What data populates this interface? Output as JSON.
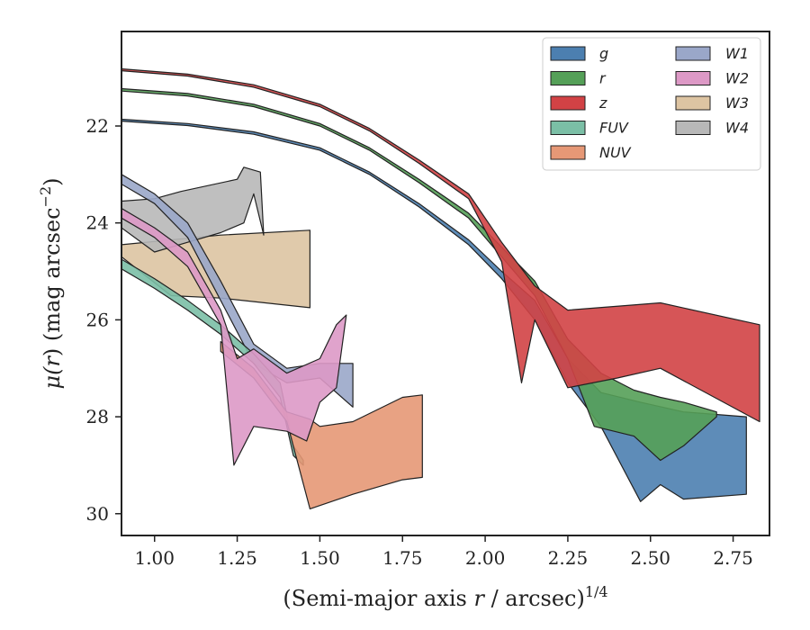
{
  "chart_data": {
    "type": "area",
    "xlabel": "(Semi-major axis r / arcsec)",
    "xlabel_parts": {
      "pre": "(Semi-major axis ",
      "var": "r",
      "post": " / arcsec)",
      "sup": "1/4"
    },
    "ylabel_parts": {
      "mu": "μ(",
      "var": "r",
      "post": ") (mag arcsec",
      "sup": "−2",
      "close": ")"
    },
    "xlim": [
      0.9,
      2.86
    ],
    "ylim": [
      30.45,
      20.05
    ],
    "y_inverted": true,
    "x_ticks": [
      1.0,
      1.25,
      1.5,
      1.75,
      2.0,
      2.25,
      2.5,
      2.75
    ],
    "x_tick_labels": [
      "1.00",
      "1.25",
      "1.50",
      "1.75",
      "2.00",
      "2.25",
      "2.50",
      "2.75"
    ],
    "y_ticks": [
      22,
      24,
      26,
      28,
      30
    ],
    "y_tick_labels": [
      "22",
      "24",
      "26",
      "28",
      "30"
    ],
    "grid": false,
    "legend_position": "top-right",
    "legend_columns": 2,
    "series": [
      {
        "name": "g",
        "color": "#4c7fb0",
        "upper": [
          [
            0.9,
            21.86
          ],
          [
            1.1,
            21.95
          ],
          [
            1.3,
            22.12
          ],
          [
            1.5,
            22.45
          ],
          [
            1.65,
            22.95
          ],
          [
            1.8,
            23.6
          ],
          [
            1.95,
            24.35
          ],
          [
            2.05,
            25.0
          ],
          [
            2.15,
            25.6
          ],
          [
            2.25,
            26.8
          ],
          [
            2.35,
            27.5
          ],
          [
            2.47,
            27.7
          ],
          [
            2.6,
            27.9
          ],
          [
            2.79,
            28.0
          ]
        ],
        "lower": [
          [
            0.9,
            21.9
          ],
          [
            1.1,
            21.99
          ],
          [
            1.3,
            22.17
          ],
          [
            1.5,
            22.5
          ],
          [
            1.65,
            23.0
          ],
          [
            1.8,
            23.67
          ],
          [
            1.95,
            24.45
          ],
          [
            2.05,
            25.15
          ],
          [
            2.15,
            26.0
          ],
          [
            2.25,
            27.3
          ],
          [
            2.35,
            28.2
          ],
          [
            2.47,
            29.75
          ],
          [
            2.53,
            29.4
          ],
          [
            2.6,
            29.7
          ],
          [
            2.79,
            29.6
          ]
        ]
      },
      {
        "name": "r",
        "color": "#55a058",
        "upper": [
          [
            0.9,
            21.23
          ],
          [
            1.1,
            21.33
          ],
          [
            1.3,
            21.55
          ],
          [
            1.5,
            21.95
          ],
          [
            1.65,
            22.45
          ],
          [
            1.8,
            23.1
          ],
          [
            1.95,
            23.8
          ],
          [
            2.05,
            24.5
          ],
          [
            2.15,
            25.2
          ],
          [
            2.25,
            26.4
          ],
          [
            2.35,
            27.1
          ],
          [
            2.45,
            27.45
          ],
          [
            2.53,
            27.6
          ],
          [
            2.6,
            27.7
          ],
          [
            2.7,
            27.9
          ]
        ],
        "lower": [
          [
            0.9,
            21.28
          ],
          [
            1.1,
            21.38
          ],
          [
            1.3,
            21.6
          ],
          [
            1.5,
            22.0
          ],
          [
            1.65,
            22.5
          ],
          [
            1.8,
            23.17
          ],
          [
            1.95,
            23.9
          ],
          [
            2.05,
            24.7
          ],
          [
            2.15,
            25.5
          ],
          [
            2.25,
            26.8
          ],
          [
            2.33,
            28.2
          ],
          [
            2.45,
            28.4
          ],
          [
            2.53,
            28.9
          ],
          [
            2.6,
            28.6
          ],
          [
            2.7,
            28.0
          ]
        ]
      },
      {
        "name": "z",
        "color": "#d24245",
        "upper": [
          [
            0.9,
            20.82
          ],
          [
            1.1,
            20.93
          ],
          [
            1.3,
            21.15
          ],
          [
            1.5,
            21.55
          ],
          [
            1.65,
            22.05
          ],
          [
            1.8,
            22.7
          ],
          [
            1.95,
            23.4
          ],
          [
            2.05,
            24.4
          ],
          [
            2.15,
            25.3
          ],
          [
            2.25,
            25.8
          ],
          [
            2.53,
            25.65
          ],
          [
            2.83,
            26.1
          ]
        ],
        "lower": [
          [
            0.9,
            20.86
          ],
          [
            1.1,
            20.97
          ],
          [
            1.3,
            21.2
          ],
          [
            1.5,
            21.6
          ],
          [
            1.65,
            22.1
          ],
          [
            1.8,
            22.77
          ],
          [
            1.95,
            23.5
          ],
          [
            2.05,
            24.8
          ],
          [
            2.11,
            27.3
          ],
          [
            2.15,
            26.0
          ],
          [
            2.25,
            27.4
          ],
          [
            2.4,
            27.2
          ],
          [
            2.53,
            27.0
          ],
          [
            2.83,
            28.1
          ]
        ]
      },
      {
        "name": "FUV",
        "color": "#7bbfa6",
        "upper": [
          [
            0.9,
            24.75
          ],
          [
            1.0,
            25.15
          ],
          [
            1.1,
            25.6
          ],
          [
            1.2,
            26.1
          ],
          [
            1.3,
            26.7
          ],
          [
            1.38,
            27.3
          ],
          [
            1.42,
            28.6
          ],
          [
            1.45,
            28.9
          ]
        ],
        "lower": [
          [
            0.9,
            24.95
          ],
          [
            1.0,
            25.35
          ],
          [
            1.1,
            25.8
          ],
          [
            1.2,
            26.3
          ],
          [
            1.3,
            26.9
          ],
          [
            1.38,
            27.6
          ],
          [
            1.42,
            28.8
          ],
          [
            1.45,
            29.0
          ]
        ]
      },
      {
        "name": "NUV",
        "color": "#e69876",
        "upper": [
          [
            1.2,
            26.45
          ],
          [
            1.3,
            27.0
          ],
          [
            1.4,
            27.9
          ],
          [
            1.47,
            28.05
          ],
          [
            1.5,
            28.2
          ],
          [
            1.6,
            28.1
          ],
          [
            1.75,
            27.6
          ],
          [
            1.81,
            27.55
          ]
        ],
        "lower": [
          [
            1.2,
            26.65
          ],
          [
            1.3,
            27.2
          ],
          [
            1.4,
            28.1
          ],
          [
            1.47,
            29.9
          ],
          [
            1.6,
            29.6
          ],
          [
            1.75,
            29.3
          ],
          [
            1.81,
            29.25
          ]
        ]
      },
      {
        "name": "W1",
        "color": "#9aa7c9",
        "upper": [
          [
            0.9,
            23.0
          ],
          [
            1.0,
            23.4
          ],
          [
            1.1,
            24.0
          ],
          [
            1.2,
            25.2
          ],
          [
            1.3,
            26.5
          ],
          [
            1.4,
            27.0
          ],
          [
            1.5,
            26.9
          ],
          [
            1.6,
            26.9
          ]
        ],
        "lower": [
          [
            0.9,
            23.2
          ],
          [
            1.0,
            23.6
          ],
          [
            1.1,
            24.3
          ],
          [
            1.2,
            25.6
          ],
          [
            1.3,
            26.9
          ],
          [
            1.4,
            27.3
          ],
          [
            1.5,
            27.2
          ],
          [
            1.6,
            27.8
          ]
        ]
      },
      {
        "name": "W2",
        "color": "#dd99c6",
        "upper": [
          [
            0.9,
            23.7
          ],
          [
            1.0,
            24.1
          ],
          [
            1.1,
            24.6
          ],
          [
            1.2,
            25.8
          ],
          [
            1.25,
            26.8
          ],
          [
            1.3,
            26.6
          ],
          [
            1.4,
            27.1
          ],
          [
            1.5,
            26.8
          ],
          [
            1.55,
            26.1
          ],
          [
            1.58,
            25.9
          ]
        ],
        "lower": [
          [
            0.9,
            23.9
          ],
          [
            1.0,
            24.3
          ],
          [
            1.1,
            24.9
          ],
          [
            1.2,
            26.1
          ],
          [
            1.24,
            29.0
          ],
          [
            1.3,
            28.2
          ],
          [
            1.4,
            28.3
          ],
          [
            1.46,
            28.5
          ],
          [
            1.5,
            27.7
          ],
          [
            1.55,
            27.4
          ]
        ]
      },
      {
        "name": "W3",
        "color": "#ddc4a2",
        "upper": [
          [
            0.9,
            24.45
          ],
          [
            1.2,
            24.25
          ],
          [
            1.47,
            24.15
          ]
        ],
        "lower": [
          [
            0.9,
            24.7
          ],
          [
            1.05,
            25.5
          ],
          [
            1.2,
            25.55
          ],
          [
            1.47,
            25.75
          ]
        ]
      },
      {
        "name": "W4",
        "color": "#b8b8b8",
        "upper": [
          [
            0.9,
            23.55
          ],
          [
            1.0,
            23.5
          ],
          [
            1.08,
            23.35
          ],
          [
            1.25,
            23.1
          ],
          [
            1.27,
            22.85
          ],
          [
            1.32,
            22.95
          ],
          [
            1.33,
            24.25
          ]
        ],
        "lower": [
          [
            0.9,
            24.1
          ],
          [
            1.0,
            24.6
          ],
          [
            1.1,
            24.4
          ],
          [
            1.2,
            24.2
          ],
          [
            1.27,
            24.0
          ],
          [
            1.3,
            23.4
          ]
        ]
      }
    ]
  }
}
